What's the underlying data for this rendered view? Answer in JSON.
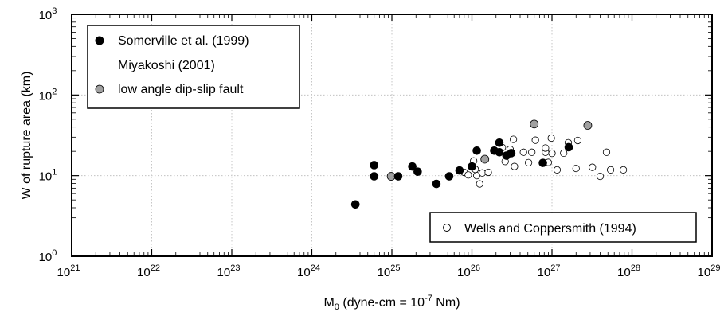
{
  "chart_data": {
    "type": "scatter",
    "x_scale": "log",
    "y_scale": "log",
    "xlim": [
      1e+21,
      1e+29
    ],
    "ylim": [
      1,
      1000
    ],
    "xlabel_main": "M",
    "xlabel_sub": "0",
    "xlabel_rest": " (dyne-cm = 10",
    "xlabel_exp": "-7",
    "xlabel_end": " Nm)",
    "ylabel": "W of rupture area (km)",
    "x_ticks": [
      {
        "base": "10",
        "exp": "21",
        "value": 1e+21
      },
      {
        "base": "10",
        "exp": "22",
        "value": 1e+22
      },
      {
        "base": "10",
        "exp": "23",
        "value": 1e+23
      },
      {
        "base": "10",
        "exp": "24",
        "value": 1e+24
      },
      {
        "base": "10",
        "exp": "25",
        "value": 1e+25
      },
      {
        "base": "10",
        "exp": "26",
        "value": 1e+26
      },
      {
        "base": "10",
        "exp": "27",
        "value": 1e+27
      },
      {
        "base": "10",
        "exp": "28",
        "value": 1e+28
      },
      {
        "base": "10",
        "exp": "29",
        "value": 1e+29
      }
    ],
    "y_ticks": [
      {
        "base": "10",
        "exp": "0",
        "value": 1
      },
      {
        "base": "10",
        "exp": "1",
        "value": 10
      },
      {
        "base": "10",
        "exp": "2",
        "value": 100
      },
      {
        "base": "10",
        "exp": "3",
        "value": 1000
      }
    ],
    "grid": true,
    "legend_top_left": [
      {
        "label": "Somerville et al. (1999)",
        "marker": "filled"
      },
      {
        "label": "Miyakoshi (2001)",
        "marker": "none"
      },
      {
        "label": "low angle dip-slip fault",
        "marker": "gray"
      }
    ],
    "legend_bottom_right": [
      {
        "label": "Wells and Coppersmith (1994)",
        "marker": "open"
      }
    ],
    "colors": {
      "filled": "#000000",
      "open": "#ffffff",
      "gray": "#a0a0a0",
      "grid": "#b8b8b8"
    },
    "series": [
      {
        "name": "Somerville et al. (1999)",
        "marker": "filled",
        "points": [
          [
            3.5e+24,
            4.4
          ],
          [
            6e+24,
            13.5
          ],
          [
            6e+24,
            9.8
          ],
          [
            1.2e+25,
            9.8
          ],
          [
            1.8e+25,
            13.0
          ],
          [
            2.1e+25,
            11.2
          ],
          [
            3.6e+25,
            7.9
          ],
          [
            5.2e+25,
            9.8
          ],
          [
            7e+25,
            11.6
          ],
          [
            1e+26,
            13.0
          ],
          [
            1.15e+26,
            20.4
          ],
          [
            2.2e+26,
            25.6
          ],
          [
            1.9e+26,
            20.4
          ],
          [
            2.2e+26,
            19.5
          ],
          [
            2.7e+26,
            17.7
          ],
          [
            3.1e+26,
            19.0
          ],
          [
            7.7e+26,
            14.4
          ],
          [
            1.62e+27,
            22.5
          ]
        ]
      },
      {
        "name": "low angle dip-slip fault",
        "marker": "gray",
        "points": [
          [
            9.8e+24,
            9.8
          ],
          [
            1.45e+26,
            16.0
          ],
          [
            6e+26,
            43.6
          ],
          [
            2.8e+27,
            42.0
          ]
        ]
      },
      {
        "name": "Wells and Coppersmith (1994)",
        "marker": "open",
        "points": [
          [
            8e+25,
            11.0
          ],
          [
            9e+25,
            10.2
          ],
          [
            1.05e+26,
            15.2
          ],
          [
            1.1e+26,
            12.0
          ],
          [
            1.15e+26,
            10.0
          ],
          [
            1.25e+26,
            7.9
          ],
          [
            1.35e+26,
            10.8
          ],
          [
            1.6e+26,
            11.0
          ],
          [
            2.4e+26,
            22.3
          ],
          [
            2.6e+26,
            15.0
          ],
          [
            3e+26,
            21.2
          ],
          [
            3.3e+26,
            28.2
          ],
          [
            3.4e+26,
            13.0
          ],
          [
            4.4e+26,
            19.5
          ],
          [
            5.1e+26,
            14.5
          ],
          [
            5.6e+26,
            19.5
          ],
          [
            6.2e+26,
            27.5
          ],
          [
            8.3e+26,
            19.5
          ],
          [
            8.3e+26,
            22.0
          ],
          [
            9e+26,
            14.6
          ],
          [
            9.8e+26,
            29.2
          ],
          [
            1e+27,
            18.9
          ],
          [
            1.16e+27,
            11.8
          ],
          [
            1.4e+27,
            19.0
          ],
          [
            1.6e+27,
            25.6
          ],
          [
            2e+27,
            12.3
          ],
          [
            2.1e+27,
            27.3
          ],
          [
            3.2e+27,
            12.7
          ],
          [
            4e+27,
            9.8
          ],
          [
            4.8e+27,
            19.5
          ],
          [
            5.4e+27,
            11.8
          ],
          [
            7.8e+27,
            11.8
          ]
        ]
      }
    ]
  }
}
